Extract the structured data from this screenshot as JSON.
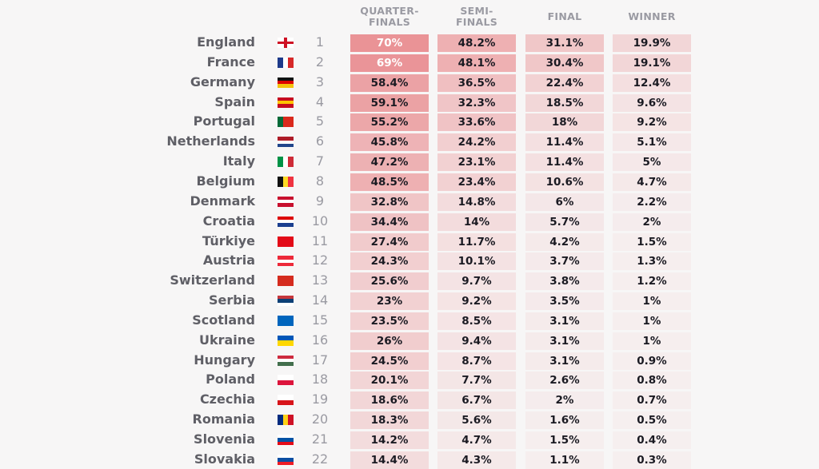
{
  "table": {
    "headers": [
      "QUARTER-FINALS",
      "SEMI-FINALS",
      "FINAL",
      "WINNER"
    ],
    "rows": [
      {
        "country": "England",
        "rank": 1,
        "values": [
          "70%",
          "48.2%",
          "31.1%",
          "19.9%"
        ]
      },
      {
        "country": "France",
        "rank": 2,
        "values": [
          "69%",
          "48.1%",
          "30.4%",
          "19.1%"
        ]
      },
      {
        "country": "Germany",
        "rank": 3,
        "values": [
          "58.4%",
          "36.5%",
          "22.4%",
          "12.4%"
        ]
      },
      {
        "country": "Spain",
        "rank": 4,
        "values": [
          "59.1%",
          "32.3%",
          "18.5%",
          "9.6%"
        ]
      },
      {
        "country": "Portugal",
        "rank": 5,
        "values": [
          "55.2%",
          "33.6%",
          "18%",
          "9.2%"
        ]
      },
      {
        "country": "Netherlands",
        "rank": 6,
        "values": [
          "45.8%",
          "24.2%",
          "11.4%",
          "5.1%"
        ]
      },
      {
        "country": "Italy",
        "rank": 7,
        "values": [
          "47.2%",
          "23.1%",
          "11.4%",
          "5%"
        ]
      },
      {
        "country": "Belgium",
        "rank": 8,
        "values": [
          "48.5%",
          "23.4%",
          "10.6%",
          "4.7%"
        ]
      },
      {
        "country": "Denmark",
        "rank": 9,
        "values": [
          "32.8%",
          "14.8%",
          "6%",
          "2.2%"
        ]
      },
      {
        "country": "Croatia",
        "rank": 10,
        "values": [
          "34.4%",
          "14%",
          "5.7%",
          "2%"
        ]
      },
      {
        "country": "Türkiye",
        "rank": 11,
        "values": [
          "27.4%",
          "11.7%",
          "4.2%",
          "1.5%"
        ]
      },
      {
        "country": "Austria",
        "rank": 12,
        "values": [
          "24.3%",
          "10.1%",
          "3.7%",
          "1.3%"
        ]
      },
      {
        "country": "Switzerland",
        "rank": 13,
        "values": [
          "25.6%",
          "9.7%",
          "3.8%",
          "1.2%"
        ]
      },
      {
        "country": "Serbia",
        "rank": 14,
        "values": [
          "23%",
          "9.2%",
          "3.5%",
          "1%"
        ]
      },
      {
        "country": "Scotland",
        "rank": 15,
        "values": [
          "23.5%",
          "8.5%",
          "3.1%",
          "1%"
        ]
      },
      {
        "country": "Ukraine",
        "rank": 16,
        "values": [
          "26%",
          "9.4%",
          "3.1%",
          "1%"
        ]
      },
      {
        "country": "Hungary",
        "rank": 17,
        "values": [
          "24.5%",
          "8.7%",
          "3.1%",
          "0.9%"
        ]
      },
      {
        "country": "Poland",
        "rank": 18,
        "values": [
          "20.1%",
          "7.7%",
          "2.6%",
          "0.8%"
        ]
      },
      {
        "country": "Czechia",
        "rank": 19,
        "values": [
          "18.6%",
          "6.7%",
          "2%",
          "0.7%"
        ]
      },
      {
        "country": "Romania",
        "rank": 20,
        "values": [
          "18.3%",
          "5.6%",
          "1.6%",
          "0.5%"
        ]
      },
      {
        "country": "Slovenia",
        "rank": 21,
        "values": [
          "14.2%",
          "4.7%",
          "1.5%",
          "0.4%"
        ]
      },
      {
        "country": "Slovakia",
        "rank": 22,
        "values": [
          "14.4%",
          "4.3%",
          "1.1%",
          "0.3%"
        ]
      }
    ]
  }
}
